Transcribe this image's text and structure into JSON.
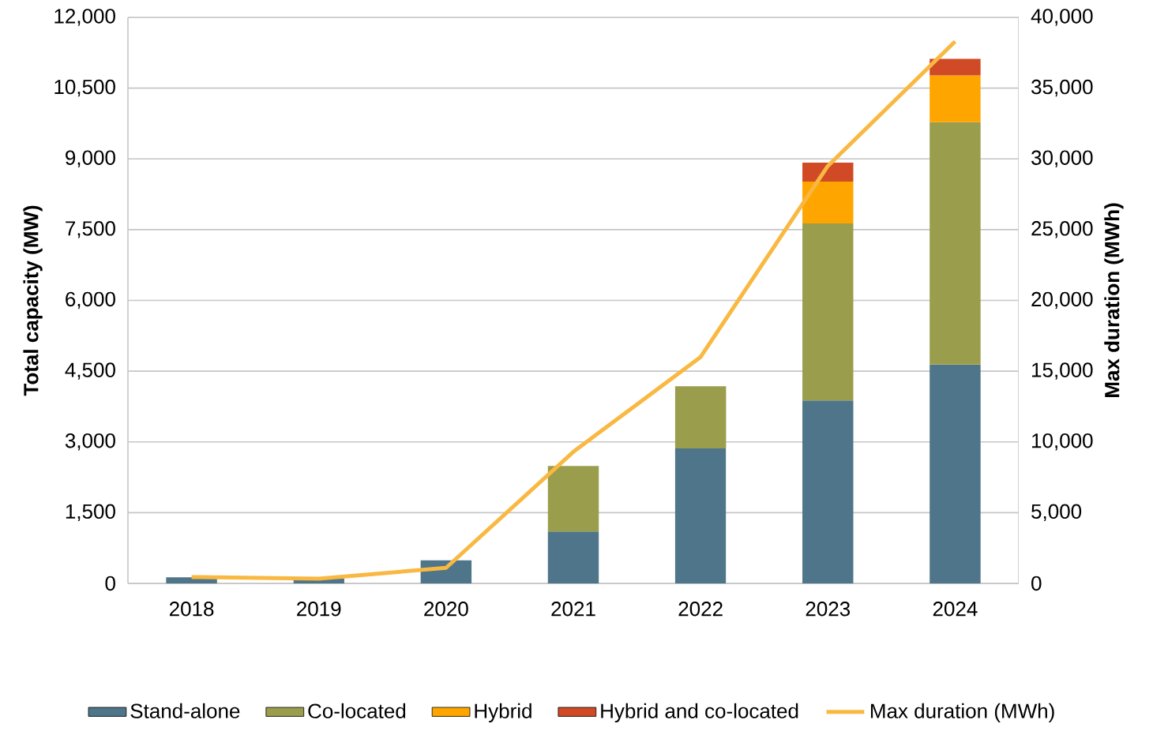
{
  "chart_data": {
    "type": "bar",
    "stacked": true,
    "ylabel": "Total capacity (MW)",
    "y2label": "Max duration (MWh)",
    "categories": [
      "2018",
      "2019",
      "2020",
      "2021",
      "2022",
      "2023",
      "2024"
    ],
    "series": [
      {
        "name": "Stand-alone",
        "color": "#4e7589",
        "values": [
          130,
          100,
          490,
          1100,
          2860,
          3880,
          4640
        ]
      },
      {
        "name": "Co-located",
        "color": "#9a9d4b",
        "values": [
          null,
          null,
          null,
          1390,
          1320,
          3750,
          5140
        ]
      },
      {
        "name": "Hybrid",
        "color": "#ffa500",
        "values": [
          null,
          null,
          null,
          null,
          null,
          890,
          990
        ]
      },
      {
        "name": "Hybrid and co-located",
        "color": "#d04a25",
        "values": [
          null,
          null,
          null,
          null,
          null,
          400,
          350
        ]
      },
      {
        "name": "Max duration (MWh)",
        "type": "line",
        "axis": "y2",
        "color": "#f9b841",
        "values": [
          450,
          340,
          1100,
          9300,
          16000,
          29500,
          38300
        ]
      }
    ],
    "ylim": [
      0,
      12000
    ],
    "yticks": [
      0,
      {
        "value": 1500,
        "label": "1,500"
      },
      {
        "value": 3000,
        "label": "3,000"
      },
      {
        "value": 4500,
        "label": "4,500"
      },
      {
        "value": 6000,
        "label": "6,000"
      },
      {
        "value": 7500,
        "label": "7,500"
      },
      {
        "value": 9000,
        "label": "9,000"
      },
      {
        "value": 10500,
        "label": "10,500"
      },
      {
        "value": 12000,
        "label": "12,000"
      }
    ],
    "y2lim": [
      0,
      40000
    ],
    "y2ticks": [
      0,
      {
        "value": 5000,
        "label": "5,000"
      },
      {
        "value": 10000,
        "label": "10,000"
      },
      {
        "value": 15000,
        "label": "15,000"
      },
      {
        "value": 20000,
        "label": "20,000"
      },
      {
        "value": 25000,
        "label": "25,000"
      },
      {
        "value": 30000,
        "label": "30,000"
      },
      {
        "value": 35000,
        "label": "35,000"
      },
      {
        "value": 40000,
        "label": "40,000"
      }
    ],
    "grid": "y",
    "legend": "bottom",
    "marker": "none",
    "line_style": "solid"
  }
}
